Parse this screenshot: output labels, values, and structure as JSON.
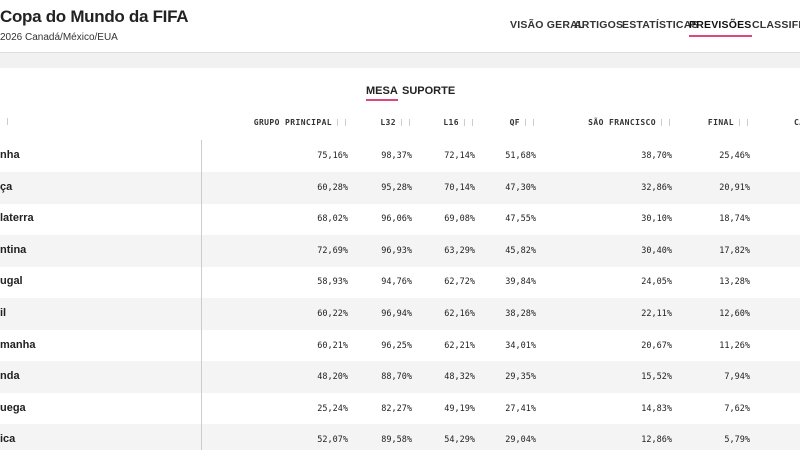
{
  "header": {
    "title": "Copa do Mundo da FIFA",
    "subtitle": "2026 Canadá/México/EUA",
    "nav": [
      "VISÃO GERAL",
      "ARTIGOS",
      "ESTATÍSTICAS",
      "PREVISÕES",
      "CLASSIFICAÇ"
    ],
    "active_nav": 3
  },
  "tabs": {
    "items": [
      "MESA",
      "SUPORTE"
    ],
    "active": 0
  },
  "table": {
    "columns": [
      "GRUPO PRINCIPAL",
      "L32",
      "L16",
      "QF",
      "SÃO FRANCISCO",
      "FINAL",
      "CA"
    ],
    "rows": [
      [
        "nha",
        "75,16%",
        "98,37%",
        "72,14%",
        "51,68%",
        "38,70%",
        "25,46%"
      ],
      [
        "ça",
        "60,28%",
        "95,28%",
        "70,14%",
        "47,30%",
        "32,86%",
        "20,91%"
      ],
      [
        "laterra",
        "68,02%",
        "96,06%",
        "69,08%",
        "47,55%",
        "30,10%",
        "18,74%"
      ],
      [
        "ntina",
        "72,69%",
        "96,93%",
        "63,29%",
        "45,82%",
        "30,40%",
        "17,82%"
      ],
      [
        "ugal",
        "58,93%",
        "94,76%",
        "62,72%",
        "39,84%",
        "24,05%",
        "13,28%"
      ],
      [
        "il",
        "60,22%",
        "96,94%",
        "62,16%",
        "38,28%",
        "22,11%",
        "12,60%"
      ],
      [
        "manha",
        "60,21%",
        "96,25%",
        "62,21%",
        "34,01%",
        "20,67%",
        "11,26%"
      ],
      [
        "nda",
        "48,20%",
        "88,70%",
        "48,32%",
        "29,35%",
        "15,52%",
        "7,94%"
      ],
      [
        "uega",
        "25,24%",
        "82,27%",
        "49,19%",
        "27,41%",
        "14,83%",
        "7,62%"
      ],
      [
        "ica",
        "52,07%",
        "89,58%",
        "54,29%",
        "29,04%",
        "12,86%",
        "5,79%"
      ]
    ]
  }
}
